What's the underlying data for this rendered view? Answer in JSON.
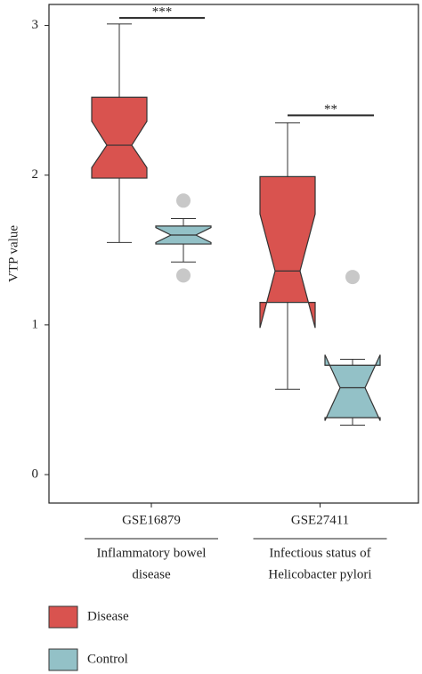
{
  "chart_data": {
    "type": "box",
    "ylabel": "VTP value",
    "categories": [
      "GSE16879",
      "GSE27411"
    ],
    "group_labels": [
      [
        "Inflammatory bowel",
        "disease"
      ],
      [
        "Infectious status of",
        "Helicobacter pylori"
      ]
    ],
    "ylim": [
      -0.19,
      3.14
    ],
    "yticks": [
      0,
      1,
      2,
      3
    ],
    "series": [
      {
        "name": "Disease",
        "color": "#d9534f",
        "boxes": [
          {
            "whisker_low": 1.55,
            "q1": 1.98,
            "median": 2.2,
            "q3": 2.52,
            "whisker_high": 3.01,
            "notch_low": 2.05,
            "notch_high": 2.36,
            "outliers": []
          },
          {
            "whisker_low": 0.57,
            "q1": 1.15,
            "median": 1.36,
            "q3": 1.99,
            "whisker_high": 2.35,
            "notch_low": 0.98,
            "notch_high": 1.74,
            "outliers": []
          }
        ]
      },
      {
        "name": "Control",
        "color": "#93c1c7",
        "boxes": [
          {
            "whisker_low": 1.42,
            "q1": 1.54,
            "median": 1.6,
            "q3": 1.66,
            "whisker_high": 1.71,
            "notch_low": 1.55,
            "notch_high": 1.65,
            "outliers": [
              1.83,
              1.33
            ]
          },
          {
            "whisker_low": 0.33,
            "q1": 0.38,
            "median": 0.58,
            "q3": 0.73,
            "whisker_high": 0.77,
            "notch_low": 0.36,
            "notch_high": 0.8,
            "outliers": [
              1.32
            ]
          }
        ]
      }
    ],
    "annotations": [
      {
        "text": "***",
        "y": 3.05
      },
      {
        "text": "**",
        "y": 2.4
      }
    ]
  }
}
